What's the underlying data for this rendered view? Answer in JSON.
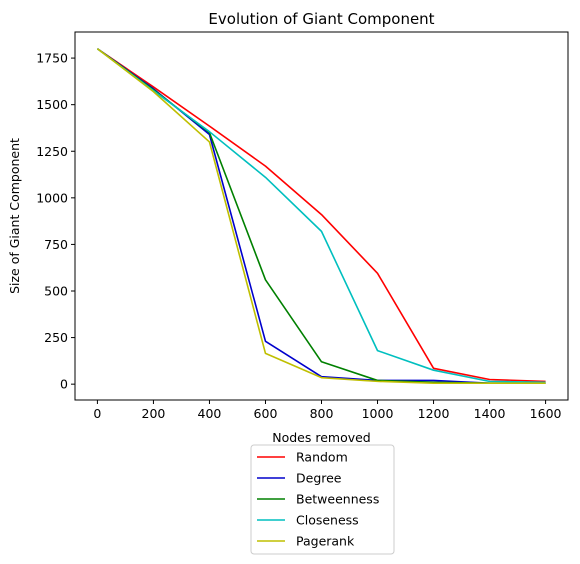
{
  "chart_data": {
    "type": "line",
    "title": "Evolution of Giant Component",
    "xlabel": "Nodes removed",
    "ylabel": "Size of Giant Component",
    "x": [
      0,
      200,
      400,
      600,
      800,
      1000,
      1200,
      1400,
      1600
    ],
    "xlim": [
      -80,
      1680
    ],
    "ylim": [
      -85,
      1890
    ],
    "xticks": [
      0,
      200,
      400,
      600,
      800,
      1000,
      1200,
      1400,
      1600
    ],
    "yticks": [
      0,
      250,
      500,
      750,
      1000,
      1250,
      1500,
      1750
    ],
    "xtick_labels": [
      "0",
      "200",
      "400",
      "600",
      "800",
      "1000",
      "1200",
      "1400",
      "1600"
    ],
    "ytick_labels": [
      "0",
      "250",
      "500",
      "750",
      "1000",
      "1250",
      "1500",
      "1750"
    ],
    "grid": false,
    "legend_position": "below-center",
    "series": [
      {
        "name": "Random",
        "color": "#ff0000",
        "values": [
          1800,
          1595,
          1385,
          1170,
          910,
          595,
          85,
          25,
          15
        ]
      },
      {
        "name": "Degree",
        "color": "#0000cc",
        "values": [
          1800,
          1585,
          1340,
          230,
          40,
          20,
          20,
          5,
          5
        ]
      },
      {
        "name": "Betweenness",
        "color": "#008000",
        "values": [
          1800,
          1580,
          1350,
          560,
          120,
          20,
          10,
          5,
          5
        ]
      },
      {
        "name": "Closeness",
        "color": "#00bfbf",
        "values": [
          1800,
          1575,
          1355,
          1110,
          820,
          180,
          75,
          15,
          10
        ]
      },
      {
        "name": "Pagerank",
        "color": "#bfbf00",
        "values": [
          1800,
          1570,
          1300,
          165,
          35,
          15,
          5,
          5,
          5
        ]
      }
    ]
  }
}
